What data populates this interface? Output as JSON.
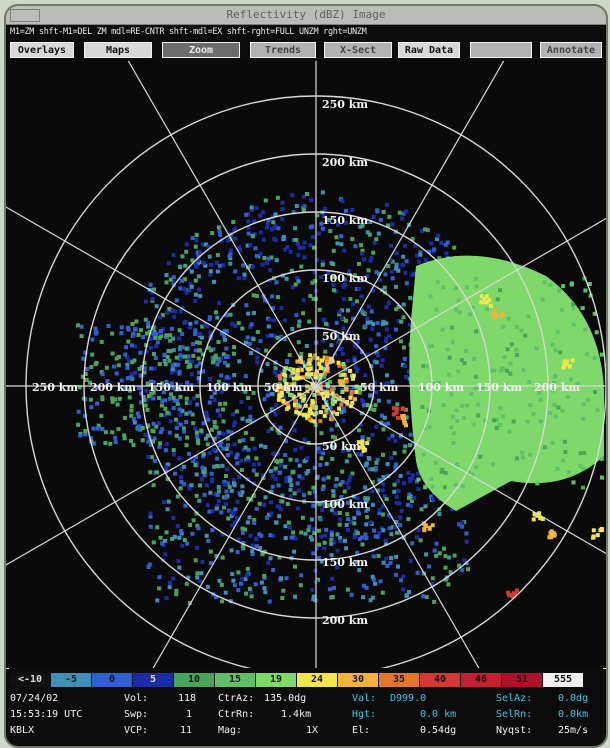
{
  "window": {
    "title": "Reflectivity (dBZ) Image"
  },
  "hints": "M1=ZM  shft-M1=DEL ZM  mdl=RE-CNTR  shft-mdl=EX  shft-rght=FULL UNZM  rght=UNZM",
  "toolbar": [
    {
      "label": "Overlays",
      "style": "light"
    },
    {
      "label": "Maps",
      "style": "light"
    },
    {
      "label": "Zoom",
      "style": "dark"
    },
    {
      "label": "Trends",
      "style": "gray"
    },
    {
      "label": "X-Sect",
      "style": "gray"
    },
    {
      "label": "Raw Data",
      "style": "light"
    },
    {
      "label": "",
      "style": "gray"
    },
    {
      "label": "Annotate",
      "style": "gray"
    }
  ],
  "radar": {
    "ring_labels": [
      "250 km",
      "200 km",
      "150 km",
      "100 km",
      "50 km"
    ],
    "west_labels": [
      "250 km",
      "200 km",
      "150 km",
      "100 km",
      "50 km"
    ],
    "east_labels": [
      "50 km",
      "100 km",
      "150 km",
      "200 km"
    ],
    "south_labels": [
      "50 km",
      "100 km",
      "150 km",
      "200 km"
    ]
  },
  "color_scale": [
    {
      "label": "<-10",
      "color": "#111111",
      "text": "#e0e0e0"
    },
    {
      "label": "-5",
      "color": "#3f8fb9",
      "text": "#111"
    },
    {
      "label": "0",
      "color": "#2f60d2",
      "text": "#111"
    },
    {
      "label": "5",
      "color": "#1c2ca6",
      "text": "#e0e0e0"
    },
    {
      "label": "10",
      "color": "#4aa35a",
      "text": "#111"
    },
    {
      "label": "15",
      "color": "#5fc06a",
      "text": "#111"
    },
    {
      "label": "19",
      "color": "#7fd86a",
      "text": "#111"
    },
    {
      "label": "24",
      "color": "#f2e64a",
      "text": "#111"
    },
    {
      "label": "30",
      "color": "#f0b43a",
      "text": "#111"
    },
    {
      "label": "35",
      "color": "#e2762a",
      "text": "#111"
    },
    {
      "label": "40",
      "color": "#d43a34",
      "text": "#111"
    },
    {
      "label": "46",
      "color": "#c42030",
      "text": "#111"
    },
    {
      "label": "51",
      "color": "#b0102a",
      "text": "#111"
    },
    {
      "label": "555",
      "color": "#f0f0f0",
      "text": "#111"
    }
  ],
  "info": {
    "date": "07/24/02",
    "time": "15:53:19 UTC",
    "station": "KBLX",
    "vol_label": "Vol:",
    "vol_value": "118",
    "swp_label": "Swp:",
    "swp_value": "1",
    "vcp_label": "VCP:",
    "vcp_value": "11",
    "ctraz_label": "CtrAz:",
    "ctraz_value": "135.0dg",
    "ctrrn_label": "CtrRn:",
    "ctrrn_value": "1.4km",
    "mag_label": "Mag:",
    "mag_value": "1X",
    "val_label": "Val:",
    "val_value": "D999.0",
    "hgt_label": "Hgt:",
    "hgt_value": "0.0 km",
    "el_label": "El:",
    "el_value": "0.54dg",
    "selaz_label": "SelAz:",
    "selaz_value": "0.0dg",
    "selrn_label": "SelRn:",
    "selrn_value": "0.0km",
    "nyqst_label": "Nyqst:",
    "nyqst_value": "25m/s"
  },
  "colors": {
    "background": "#0a0a0a",
    "ring": "#d8d8d8",
    "stratiform": "#7fd86a",
    "light_echo": "#1c2ca6",
    "heavy_echo": "#d43a34"
  }
}
